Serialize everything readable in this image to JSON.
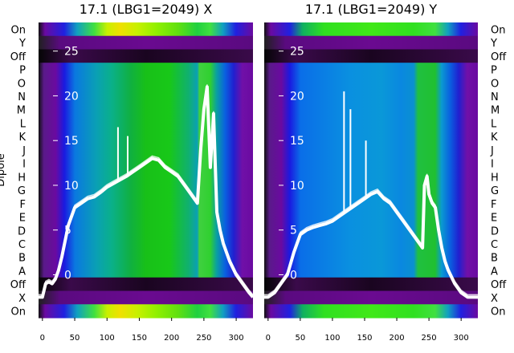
{
  "chart_data": [
    {
      "type": "heatmap",
      "title": "17.1 (LBG1=2049) X",
      "ylabel": "Dipole",
      "xlim": [
        -6,
        326
      ],
      "x_ticks": [
        0,
        50,
        100,
        150,
        200,
        250,
        300
      ],
      "row_labels": [
        "On",
        "Y",
        "Off",
        "P",
        "O",
        "N",
        "M",
        "L",
        "K",
        "J",
        "I",
        "H",
        "G",
        "F",
        "E",
        "D",
        "C",
        "B",
        "A",
        "Off",
        "X",
        "On"
      ],
      "overlay_ylim": [
        -4.8,
        28.2
      ],
      "overlay_ticks": [
        0,
        5,
        10,
        15,
        20,
        25
      ],
      "grid": false,
      "overlay_trace": {
        "x": [
          -6,
          0,
          5,
          10,
          15,
          20,
          25,
          30,
          40,
          50,
          60,
          70,
          80,
          90,
          100,
          110,
          120,
          130,
          140,
          150,
          160,
          170,
          180,
          190,
          200,
          210,
          220,
          230,
          240,
          245,
          250,
          255,
          260,
          265,
          270,
          275,
          280,
          290,
          300,
          310,
          320,
          326
        ],
        "y": [
          -2.5,
          -2.5,
          -1,
          -0.8,
          -1,
          -0.5,
          0.5,
          2,
          5.5,
          7.5,
          8,
          8.5,
          8.7,
          9.2,
          9.8,
          10.2,
          10.6,
          11,
          11.5,
          12,
          12.5,
          13,
          12.8,
          12,
          11.5,
          11,
          10,
          9,
          8,
          14,
          18.5,
          21,
          12,
          18,
          7,
          5,
          3.5,
          1.5,
          0,
          -1,
          -2,
          -2.5
        ],
        "spikes": [
          {
            "x": 117,
            "y": 16.5
          },
          {
            "x": 132,
            "y": 15.5
          }
        ]
      }
    },
    {
      "type": "heatmap",
      "title": "17.1 (LBG1=2049) Y",
      "xlim": [
        -6,
        326
      ],
      "x_ticks": [
        0,
        50,
        100,
        150,
        200,
        250,
        300
      ],
      "row_labels": [
        "On",
        "Y",
        "Off",
        "P",
        "O",
        "N",
        "M",
        "L",
        "K",
        "J",
        "I",
        "H",
        "G",
        "F",
        "E",
        "D",
        "C",
        "B",
        "A",
        "Off",
        "X",
        "On"
      ],
      "overlay_ylim": [
        -4.8,
        28.2
      ],
      "overlay_ticks": [
        0,
        5,
        10,
        15,
        20,
        25
      ],
      "grid": false,
      "overlay_trace": {
        "x": [
          -6,
          0,
          10,
          20,
          30,
          40,
          50,
          60,
          70,
          80,
          90,
          100,
          110,
          120,
          130,
          140,
          150,
          160,
          170,
          180,
          190,
          200,
          210,
          220,
          230,
          240,
          243,
          247,
          250,
          255,
          260,
          265,
          270,
          275,
          280,
          290,
          300,
          310,
          320,
          326
        ],
        "y": [
          -2.5,
          -2.5,
          -2,
          -1,
          0,
          2.5,
          4.5,
          5,
          5.3,
          5.5,
          5.7,
          6,
          6.5,
          7,
          7.5,
          8,
          8.5,
          9,
          9.3,
          8.5,
          8,
          7,
          6,
          5,
          4,
          3,
          10,
          11,
          9,
          8,
          7.5,
          5,
          3,
          1.5,
          0.5,
          -1,
          -2,
          -2.5,
          -2.5,
          -2.5
        ],
        "spikes": [
          {
            "x": 118,
            "y": 20.5
          },
          {
            "x": 128,
            "y": 18.5
          },
          {
            "x": 152,
            "y": 15
          }
        ]
      }
    }
  ]
}
